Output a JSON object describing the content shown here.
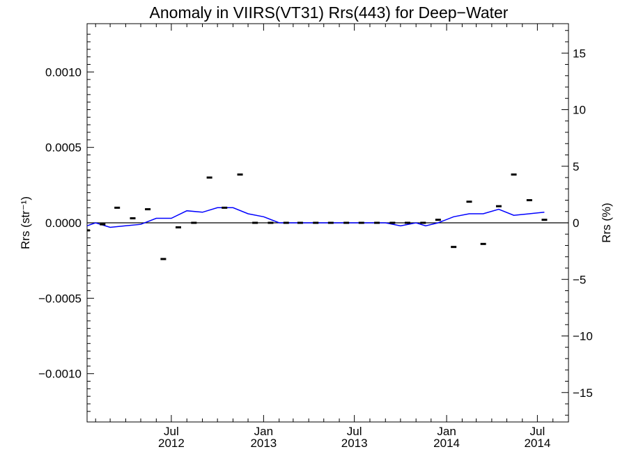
{
  "chart_data": {
    "type": "line",
    "title": "Anomaly in VIIRS(VT31) Rrs(443) for Deep−Water",
    "ylabel_left": "Rrs (str⁻¹)",
    "ylabel_right": "Rrs (%)",
    "xlabel": "",
    "grid": false,
    "x_range": [
      "2012-01-15",
      "2014-09-01"
    ],
    "y_range_left": [
      -0.00132,
      0.00132
    ],
    "y_range_right": [
      -17.6,
      17.6
    ],
    "y_ticks_left": [
      "0.0010",
      "0.0005",
      "0.0000",
      "−0.0005",
      "−0.0010"
    ],
    "y_ticks_right": [
      "15",
      "10",
      "5",
      "0",
      "−5",
      "−10",
      "−15"
    ],
    "x_tick_labels": [
      {
        "month": "Jul",
        "year": "2012"
      },
      {
        "month": "Jan",
        "year": "2013"
      },
      {
        "month": "Jul",
        "year": "2013"
      },
      {
        "month": "Jan",
        "year": "2014"
      },
      {
        "month": "Jul",
        "year": "2014"
      }
    ],
    "x_tick_dates": [
      "2012-07-01",
      "2013-01-01",
      "2013-07-01",
      "2014-01-01",
      "2014-07-01"
    ],
    "x_minor_tick_dates": [
      "2012-02-01",
      "2012-03-01",
      "2012-04-01",
      "2012-05-01",
      "2012-06-01",
      "2012-08-01",
      "2012-09-01",
      "2012-10-01",
      "2012-11-01",
      "2012-12-01",
      "2013-02-01",
      "2013-03-01",
      "2013-04-01",
      "2013-05-01",
      "2013-06-01",
      "2013-08-01",
      "2013-09-01",
      "2013-10-01",
      "2013-11-01",
      "2013-12-01",
      "2014-02-01",
      "2014-03-01",
      "2014-04-01",
      "2014-05-01",
      "2014-06-01",
      "2014-08-01"
    ],
    "series": [
      {
        "kind": "points",
        "color": "#000000",
        "points": [
          {
            "x": "2012-01-15",
            "y": -5e-05
          },
          {
            "x": "2012-02-15",
            "y": -1e-05
          },
          {
            "x": "2012-03-15",
            "y": 0.0001
          },
          {
            "x": "2012-04-15",
            "y": 3e-05
          },
          {
            "x": "2012-05-15",
            "y": 9e-05
          },
          {
            "x": "2012-06-15",
            "y": -0.00024
          },
          {
            "x": "2012-07-15",
            "y": -3e-05
          },
          {
            "x": "2012-08-15",
            "y": 0.0
          },
          {
            "x": "2012-09-15",
            "y": 0.0003
          },
          {
            "x": "2012-10-15",
            "y": 0.0001
          },
          {
            "x": "2012-11-15",
            "y": 0.00032
          },
          {
            "x": "2012-12-15",
            "y": 0.0
          },
          {
            "x": "2013-01-15",
            "y": 0.0
          },
          {
            "x": "2013-02-15",
            "y": 0.0
          },
          {
            "x": "2013-03-15",
            "y": 0.0
          },
          {
            "x": "2013-04-15",
            "y": 0.0
          },
          {
            "x": "2013-05-15",
            "y": 0.0
          },
          {
            "x": "2013-06-15",
            "y": 0.0
          },
          {
            "x": "2013-07-15",
            "y": 0.0
          },
          {
            "x": "2013-08-15",
            "y": 0.0
          },
          {
            "x": "2013-09-15",
            "y": 0.0
          },
          {
            "x": "2013-10-15",
            "y": 0.0
          },
          {
            "x": "2013-11-15",
            "y": 0.0
          },
          {
            "x": "2013-12-15",
            "y": 2e-05
          },
          {
            "x": "2014-01-15",
            "y": -0.00016
          },
          {
            "x": "2014-02-15",
            "y": 0.00014
          },
          {
            "x": "2014-03-15",
            "y": -0.00014
          },
          {
            "x": "2014-04-15",
            "y": 0.00011
          },
          {
            "x": "2014-05-15",
            "y": 0.00032
          },
          {
            "x": "2014-06-15",
            "y": 0.00015
          },
          {
            "x": "2014-07-15",
            "y": 2e-05
          }
        ]
      },
      {
        "kind": "line",
        "color": "#0000ff",
        "points": [
          {
            "x": "2012-01-15",
            "y": -2e-05
          },
          {
            "x": "2012-02-01",
            "y": 0.0
          },
          {
            "x": "2012-03-01",
            "y": -3e-05
          },
          {
            "x": "2012-04-01",
            "y": -2e-05
          },
          {
            "x": "2012-05-01",
            "y": -1e-05
          },
          {
            "x": "2012-06-01",
            "y": 3e-05
          },
          {
            "x": "2012-07-01",
            "y": 3e-05
          },
          {
            "x": "2012-08-01",
            "y": 8e-05
          },
          {
            "x": "2012-09-01",
            "y": 7e-05
          },
          {
            "x": "2012-10-01",
            "y": 0.0001
          },
          {
            "x": "2012-11-01",
            "y": 0.0001
          },
          {
            "x": "2012-12-01",
            "y": 6e-05
          },
          {
            "x": "2013-01-01",
            "y": 4e-05
          },
          {
            "x": "2013-02-01",
            "y": 0.0
          },
          {
            "x": "2013-03-01",
            "y": 0.0
          },
          {
            "x": "2013-04-01",
            "y": 0.0
          },
          {
            "x": "2013-05-01",
            "y": 0.0
          },
          {
            "x": "2013-06-01",
            "y": 0.0
          },
          {
            "x": "2013-07-01",
            "y": 0.0
          },
          {
            "x": "2013-08-01",
            "y": 0.0
          },
          {
            "x": "2013-09-01",
            "y": 0.0
          },
          {
            "x": "2013-10-01",
            "y": -2e-05
          },
          {
            "x": "2013-11-01",
            "y": 0.0
          },
          {
            "x": "2013-11-20",
            "y": -2e-05
          },
          {
            "x": "2013-12-15",
            "y": 0.0
          },
          {
            "x": "2014-01-15",
            "y": 4e-05
          },
          {
            "x": "2014-02-15",
            "y": 6e-05
          },
          {
            "x": "2014-03-15",
            "y": 6e-05
          },
          {
            "x": "2014-04-15",
            "y": 9e-05
          },
          {
            "x": "2014-05-15",
            "y": 5e-05
          },
          {
            "x": "2014-06-15",
            "y": 6e-05
          },
          {
            "x": "2014-07-15",
            "y": 7e-05
          }
        ]
      }
    ],
    "reference_line": {
      "y": 0,
      "color": "#000000"
    }
  }
}
